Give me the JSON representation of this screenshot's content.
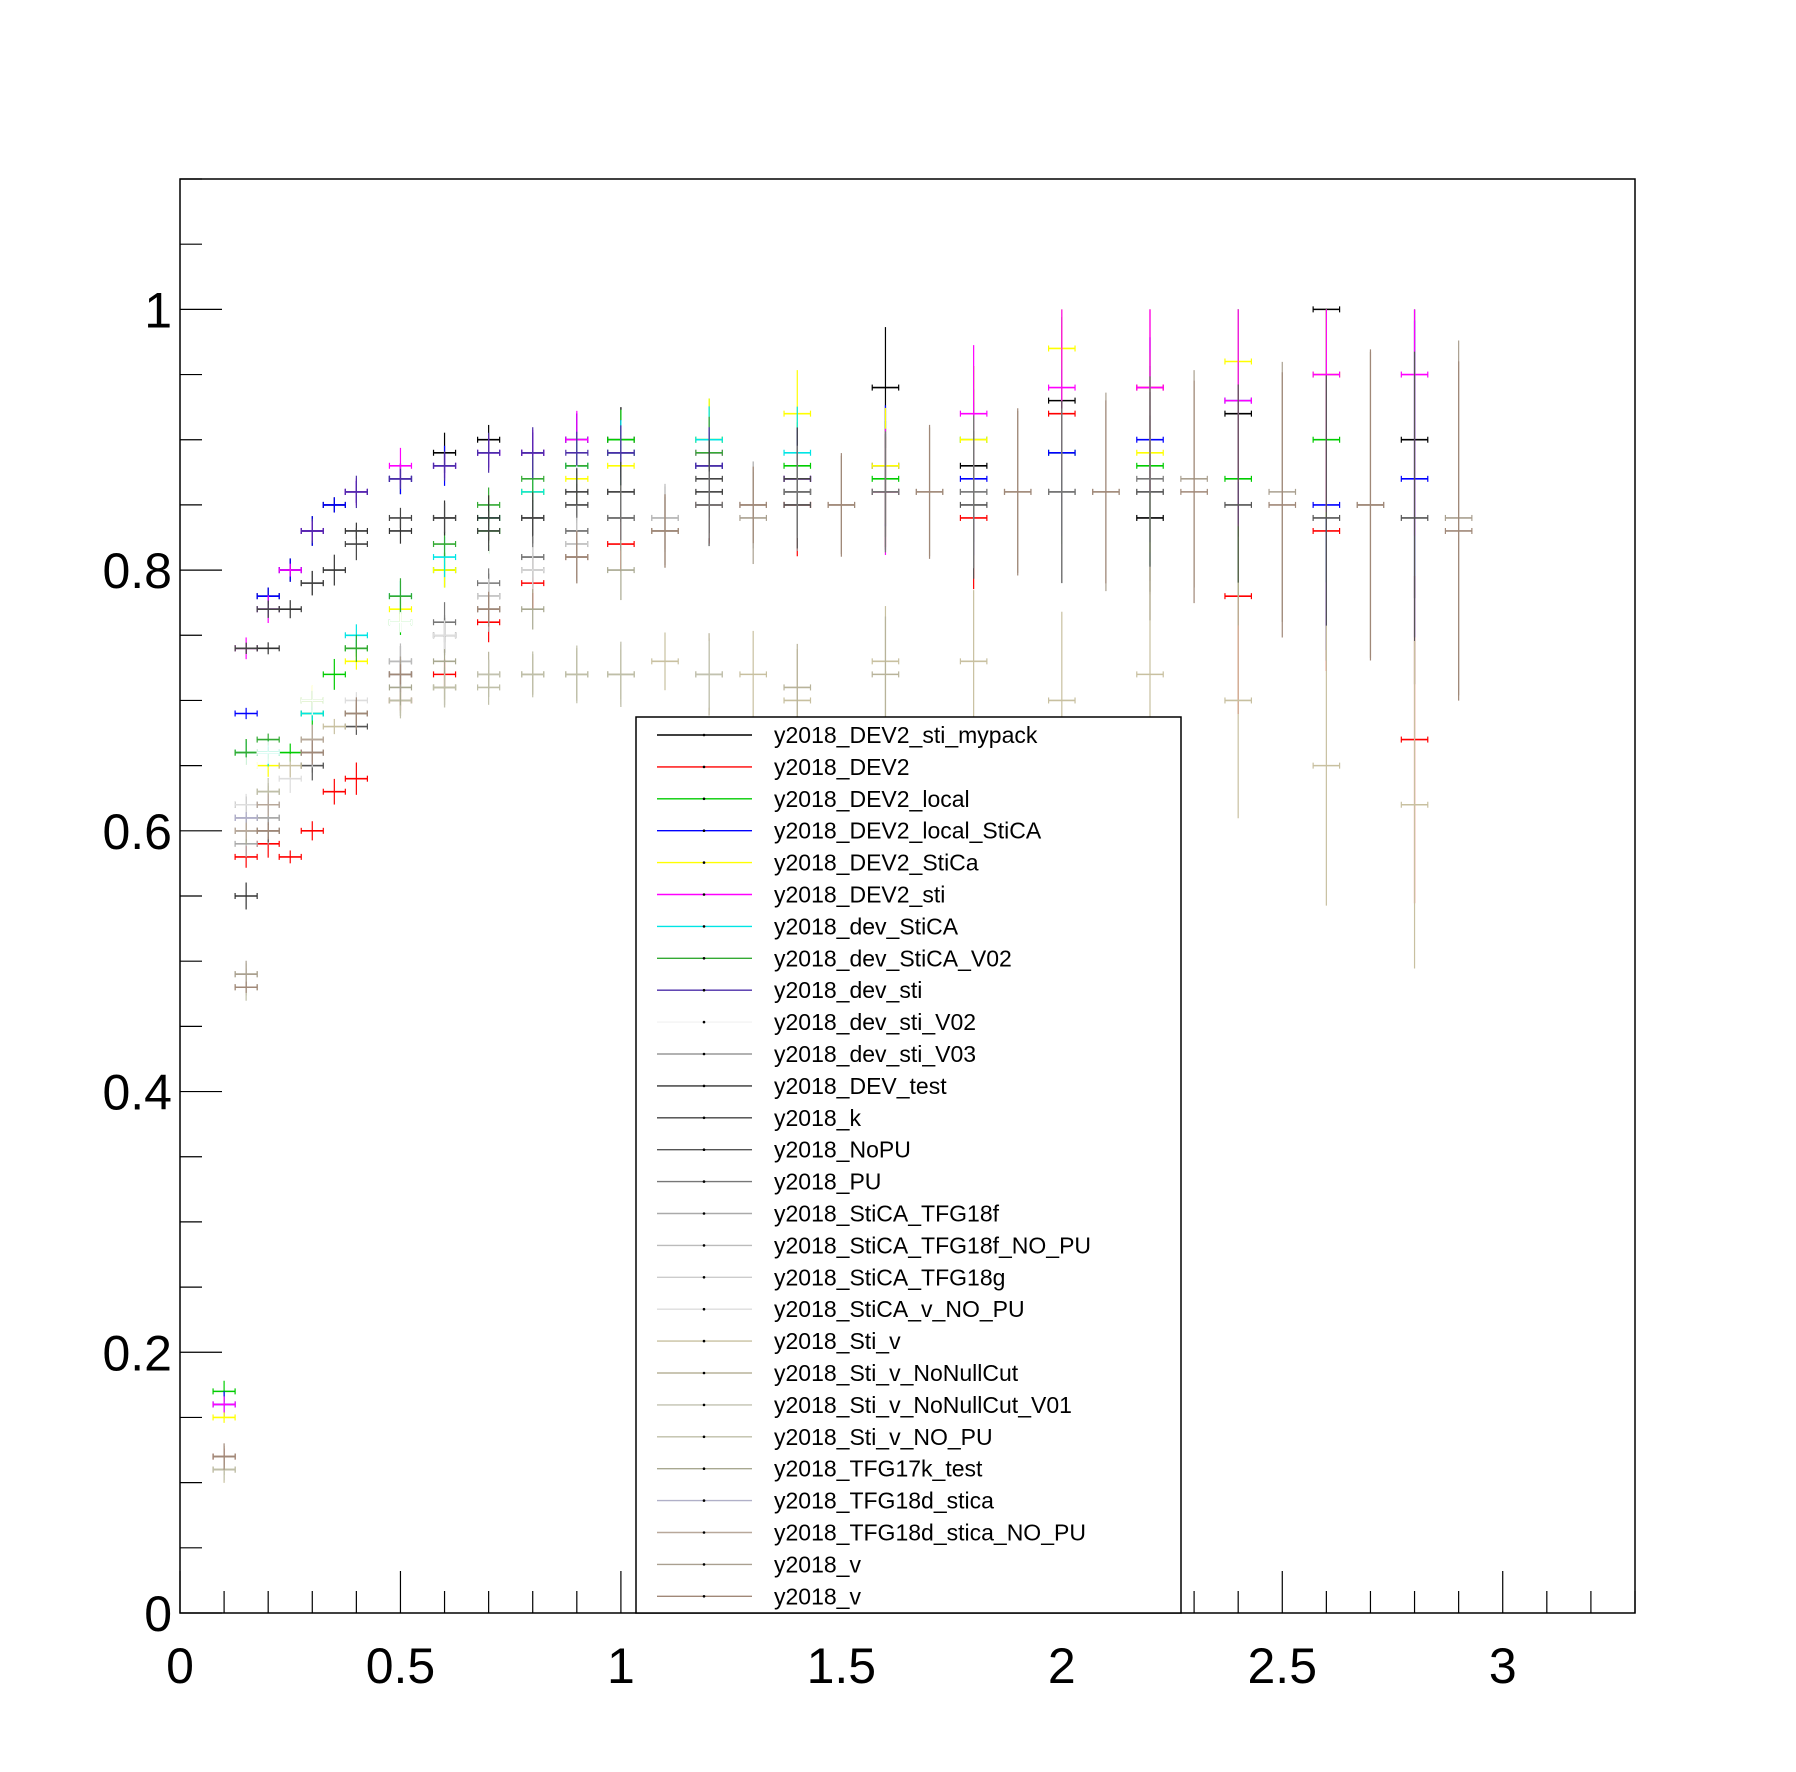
{
  "chart_data": {
    "type": "scatter",
    "title": "",
    "xlabel": "",
    "ylabel": "",
    "xlim": [
      0,
      3.3
    ],
    "ylim": [
      0,
      1.1
    ],
    "x_ticks": [
      0,
      0.5,
      1,
      1.5,
      2,
      2.5,
      3
    ],
    "x_tick_labels": [
      "0",
      "0.5",
      "1",
      "1.5",
      "2",
      "2.5",
      "3"
    ],
    "y_ticks": [
      0,
      0.2,
      0.4,
      0.6,
      0.8,
      1
    ],
    "y_tick_labels": [
      "0",
      "0.2",
      "0.4",
      "0.6",
      "0.8",
      "1"
    ],
    "grid": false,
    "legend_position": "bottom-center",
    "error_bars": true,
    "series": [
      {
        "name": "y2018_DEV2_sti_mypack",
        "color": "#000000",
        "x": [
          0.15,
          0.2,
          0.25,
          0.3,
          0.35,
          0.4,
          0.5,
          0.6,
          0.7,
          0.8,
          0.9,
          1.0,
          1.2,
          1.4,
          1.6,
          1.8,
          2.0,
          2.2,
          2.4,
          2.6,
          2.8
        ],
        "y": [
          0.74,
          0.78,
          0.8,
          0.83,
          0.85,
          0.86,
          0.87,
          0.89,
          0.9,
          0.89,
          0.9,
          0.9,
          0.88,
          0.86,
          0.94,
          0.88,
          0.93,
          0.84,
          0.92,
          1.0,
          0.9
        ]
      },
      {
        "name": "y2018_DEV2",
        "color": "#ff0000",
        "x": [
          0.1,
          0.15,
          0.2,
          0.25,
          0.3,
          0.35,
          0.4,
          0.5,
          0.6,
          0.7,
          0.8,
          0.9,
          1.0,
          1.2,
          1.4,
          1.6,
          1.8,
          2.0,
          2.2,
          2.4,
          2.6,
          2.8
        ],
        "y": [
          0.12,
          0.58,
          0.59,
          0.58,
          0.6,
          0.63,
          0.64,
          0.7,
          0.72,
          0.76,
          0.79,
          0.81,
          0.82,
          0.85,
          0.85,
          0.86,
          0.84,
          0.92,
          0.94,
          0.78,
          0.83,
          0.67
        ]
      },
      {
        "name": "y2018_DEV2_local",
        "color": "#00cc00",
        "x": [
          0.1,
          0.15,
          0.2,
          0.25,
          0.3,
          0.35,
          0.4,
          0.5,
          0.6,
          0.7,
          0.8,
          0.9,
          1.0,
          1.2,
          1.4,
          1.6,
          1.8,
          2.0,
          2.2,
          2.4,
          2.6
        ],
        "y": [
          0.17,
          0.66,
          0.66,
          0.66,
          0.69,
          0.72,
          0.74,
          0.76,
          0.8,
          0.83,
          0.86,
          0.88,
          0.9,
          0.9,
          0.88,
          0.87,
          0.9,
          0.89,
          0.88,
          0.87,
          0.9
        ]
      },
      {
        "name": "y2018_DEV2_local_StiCA",
        "color": "#0000ff",
        "x": [
          0.1,
          0.15,
          0.2,
          0.25,
          0.3,
          0.35,
          0.4,
          0.5,
          0.6,
          0.7,
          0.8,
          0.9,
          1.0,
          1.2,
          1.4,
          1.6,
          1.8,
          2.0,
          2.2,
          2.4,
          2.6,
          2.8
        ],
        "y": [
          0.16,
          0.69,
          0.78,
          0.8,
          0.83,
          0.85,
          0.86,
          0.87,
          0.88,
          0.89,
          0.89,
          0.9,
          0.89,
          0.88,
          0.87,
          0.88,
          0.87,
          0.89,
          0.9,
          0.93,
          0.85,
          0.87
        ]
      },
      {
        "name": "y2018_DEV2_StiCa",
        "color": "#ffff00",
        "x": [
          0.1,
          0.15,
          0.2,
          0.3,
          0.4,
          0.5,
          0.6,
          0.7,
          0.8,
          0.9,
          1.0,
          1.2,
          1.4,
          1.6,
          1.8,
          2.0,
          2.2,
          2.4,
          2.6
        ],
        "y": [
          0.15,
          0.66,
          0.65,
          0.7,
          0.73,
          0.77,
          0.8,
          0.84,
          0.86,
          0.87,
          0.88,
          0.9,
          0.92,
          0.88,
          0.9,
          0.97,
          0.89,
          0.96,
          0.95
        ]
      },
      {
        "name": "y2018_DEV2_sti",
        "color": "#ff00ff",
        "x": [
          0.1,
          0.15,
          0.2,
          0.25,
          0.3,
          0.4,
          0.5,
          0.6,
          0.7,
          0.8,
          0.9,
          1.0,
          1.2,
          1.4,
          1.6,
          1.8,
          2.0,
          2.2,
          2.4,
          2.6,
          2.8
        ],
        "y": [
          0.16,
          0.74,
          0.77,
          0.8,
          0.83,
          0.86,
          0.88,
          0.88,
          0.89,
          0.89,
          0.9,
          0.89,
          0.89,
          0.87,
          0.86,
          0.92,
          0.94,
          0.94,
          0.93,
          0.95,
          0.95
        ]
      },
      {
        "name": "y2018_dev_StiCA",
        "color": "#00e5e5",
        "x": [
          0.15,
          0.2,
          0.3,
          0.4,
          0.5,
          0.6,
          0.7,
          0.8,
          0.9,
          1.0,
          1.2,
          1.4
        ],
        "y": [
          0.66,
          0.66,
          0.69,
          0.75,
          0.78,
          0.81,
          0.84,
          0.86,
          0.88,
          0.89,
          0.9,
          0.89
        ]
      },
      {
        "name": "y2018_dev_StiCA_V02",
        "color": "#33aa33",
        "x": [
          0.15,
          0.2,
          0.3,
          0.4,
          0.5,
          0.6,
          0.7,
          0.8,
          0.9,
          1.0,
          1.2
        ],
        "y": [
          0.66,
          0.67,
          0.7,
          0.74,
          0.78,
          0.82,
          0.85,
          0.87,
          0.88,
          0.89,
          0.89
        ]
      },
      {
        "name": "y2018_dev_sti",
        "color": "#4b2ea8",
        "x": [
          0.15,
          0.2,
          0.3,
          0.4,
          0.5,
          0.6,
          0.7,
          0.8,
          0.9,
          1.0,
          1.2,
          1.4
        ],
        "y": [
          0.61,
          0.77,
          0.83,
          0.86,
          0.87,
          0.88,
          0.89,
          0.89,
          0.89,
          0.89,
          0.88,
          0.87
        ]
      },
      {
        "name": "y2018_dev_sti_V02",
        "color": "#ffffff",
        "x": [
          0.15,
          0.2,
          0.3,
          0.5,
          0.7,
          0.9
        ],
        "y": [
          0.65,
          0.66,
          0.7,
          0.76,
          0.82,
          0.86
        ]
      },
      {
        "name": "y2018_dev_sti_V03",
        "color": "#999999",
        "x": [
          0.15,
          0.2,
          0.3,
          0.4,
          0.5,
          0.6,
          0.7,
          0.8,
          0.9,
          1.0,
          1.2,
          1.4,
          1.6,
          1.8,
          2.0,
          2.2
        ],
        "y": [
          0.6,
          0.6,
          0.65,
          0.69,
          0.72,
          0.75,
          0.78,
          0.81,
          0.83,
          0.84,
          0.85,
          0.85,
          0.86,
          0.86,
          0.86,
          0.86
        ]
      },
      {
        "name": "y2018_DEV_test",
        "color": "#333333",
        "x": [
          0.15,
          0.2,
          0.25,
          0.3,
          0.35,
          0.4,
          0.5,
          0.6,
          0.7,
          0.8,
          0.9,
          1.0,
          1.2,
          1.4
        ],
        "y": [
          0.55,
          0.74,
          0.77,
          0.79,
          0.8,
          0.83,
          0.83,
          0.84,
          0.84,
          0.84,
          0.86,
          0.86,
          0.86,
          0.86
        ]
      },
      {
        "name": "y2018_k",
        "color": "#444444",
        "x": [
          0.15,
          0.2,
          0.3,
          0.4,
          0.5,
          0.6,
          0.7,
          0.8,
          0.9,
          1.0,
          1.2,
          1.4
        ],
        "y": [
          0.74,
          0.77,
          0.79,
          0.82,
          0.84,
          0.84,
          0.83,
          0.84,
          0.85,
          0.86,
          0.87,
          0.87
        ]
      },
      {
        "name": "y2018_NoPU",
        "color": "#555555",
        "x": [
          0.15,
          0.2,
          0.3,
          0.4,
          0.5,
          0.6,
          0.7,
          0.8,
          0.9,
          1.0,
          1.2,
          1.4,
          1.6,
          1.8,
          2.0,
          2.2,
          2.4,
          2.6,
          2.8
        ],
        "y": [
          0.62,
          0.6,
          0.65,
          0.68,
          0.72,
          0.75,
          0.78,
          0.8,
          0.82,
          0.84,
          0.85,
          0.85,
          0.86,
          0.85,
          0.86,
          0.86,
          0.85,
          0.84,
          0.84
        ]
      },
      {
        "name": "y2018_PU",
        "color": "#777777",
        "x": [
          0.15,
          0.2,
          0.3,
          0.4,
          0.5,
          0.6,
          0.7,
          0.8,
          0.9,
          1.0,
          1.2,
          1.4,
          1.6,
          1.8,
          2.0,
          2.2
        ],
        "y": [
          0.6,
          0.61,
          0.66,
          0.69,
          0.73,
          0.76,
          0.79,
          0.81,
          0.83,
          0.84,
          0.85,
          0.86,
          0.86,
          0.86,
          0.86,
          0.87
        ]
      },
      {
        "name": "y2018_StiCA_TFG18f",
        "color": "#aaaaaa",
        "x": [
          0.15,
          0.2,
          0.3,
          0.5,
          0.7,
          0.9,
          1.1,
          1.3
        ],
        "y": [
          0.59,
          0.61,
          0.66,
          0.72,
          0.77,
          0.82,
          0.84,
          0.85
        ]
      },
      {
        "name": "y2018_StiCA_TFG18f_NO_PU",
        "color": "#bbbbbb",
        "x": [
          0.15,
          0.2,
          0.3,
          0.5,
          0.7,
          0.9,
          1.1
        ],
        "y": [
          0.61,
          0.63,
          0.67,
          0.73,
          0.78,
          0.82,
          0.84
        ]
      },
      {
        "name": "y2018_StiCA_TFG18g",
        "color": "#cccccc",
        "x": [
          0.15,
          0.2,
          0.3,
          0.5,
          0.7,
          0.9
        ],
        "y": [
          0.6,
          0.62,
          0.66,
          0.72,
          0.78,
          0.82
        ]
      },
      {
        "name": "y2018_StiCA_v_NO_PU",
        "color": "#dddddd",
        "x": [
          0.15,
          0.25,
          0.4,
          0.6,
          0.8
        ],
        "y": [
          0.62,
          0.64,
          0.7,
          0.75,
          0.8
        ]
      },
      {
        "name": "y2018_Sti_v",
        "color": "#c8c0a0",
        "x": [
          0.1,
          0.15,
          0.2,
          0.25,
          0.3,
          0.35,
          0.4,
          0.5,
          0.6,
          0.7,
          0.8,
          0.9,
          1.0,
          1.1,
          1.2,
          1.3,
          1.4,
          1.6,
          1.8,
          2.0,
          2.2,
          2.4,
          2.6,
          2.8
        ],
        "y": [
          0.11,
          0.49,
          0.63,
          0.65,
          0.67,
          0.68,
          0.69,
          0.7,
          0.71,
          0.72,
          0.72,
          0.72,
          0.72,
          0.73,
          0.72,
          0.72,
          0.7,
          0.73,
          0.73,
          0.7,
          0.72,
          0.7,
          0.65,
          0.62
        ]
      },
      {
        "name": "y2018_Sti_v_NoNullCut",
        "color": "#b8b39a",
        "x": [
          0.1,
          0.15,
          0.2,
          0.3,
          0.4,
          0.5,
          0.6,
          0.7,
          0.8,
          0.9,
          1.0,
          1.2,
          1.4,
          1.6
        ],
        "y": [
          0.11,
          0.48,
          0.62,
          0.67,
          0.69,
          0.7,
          0.71,
          0.72,
          0.72,
          0.72,
          0.72,
          0.72,
          0.71,
          0.72
        ]
      },
      {
        "name": "y2018_Sti_v_NoNullCut_V01",
        "color": "#c2c2b0",
        "x": [
          0.1,
          0.15,
          0.2,
          0.3,
          0.4,
          0.5,
          0.6,
          0.7,
          0.8,
          0.9,
          1.0,
          1.2
        ],
        "y": [
          0.12,
          0.49,
          0.63,
          0.67,
          0.69,
          0.7,
          0.71,
          0.72,
          0.72,
          0.72,
          0.72,
          0.72
        ]
      },
      {
        "name": "y2018_Sti_v_NO_PU",
        "color": "#bfbfa8",
        "x": [
          0.1,
          0.15,
          0.2,
          0.3,
          0.4,
          0.5,
          0.6,
          0.7,
          0.8,
          0.9,
          1.0
        ],
        "y": [
          0.11,
          0.48,
          0.63,
          0.67,
          0.69,
          0.7,
          0.71,
          0.71,
          0.72,
          0.72,
          0.72
        ]
      },
      {
        "name": "y2018_TFG17k_test",
        "color": "#a8a890",
        "x": [
          0.15,
          0.2,
          0.3,
          0.4,
          0.5,
          0.6,
          0.8,
          1.0
        ],
        "y": [
          0.6,
          0.62,
          0.66,
          0.69,
          0.71,
          0.73,
          0.77,
          0.8
        ]
      },
      {
        "name": "y2018_TFG18d_stica",
        "color": "#b0b0c8",
        "x": [
          0.15,
          0.2,
          0.3,
          0.5,
          0.7,
          0.9
        ],
        "y": [
          0.61,
          0.62,
          0.66,
          0.72,
          0.77,
          0.81
        ]
      },
      {
        "name": "y2018_TFG18d_stica_NO_PU",
        "color": "#b8a89a",
        "x": [
          0.15,
          0.2,
          0.3,
          0.5,
          0.7,
          0.9,
          1.1,
          1.3
        ],
        "y": [
          0.6,
          0.62,
          0.67,
          0.72,
          0.77,
          0.81,
          0.83,
          0.85
        ]
      },
      {
        "name": "y2018_v",
        "color": "#aaa090",
        "x": [
          0.1,
          0.15,
          0.2,
          0.3,
          0.4,
          0.5,
          0.7,
          0.9,
          1.1,
          1.3,
          1.5,
          1.7,
          1.9,
          2.1,
          2.3,
          2.5,
          2.7,
          2.9
        ],
        "y": [
          0.12,
          0.49,
          0.6,
          0.66,
          0.69,
          0.72,
          0.77,
          0.81,
          0.83,
          0.84,
          0.85,
          0.86,
          0.86,
          0.86,
          0.87,
          0.86,
          0.85,
          0.84
        ]
      },
      {
        "name": "y2018_v",
        "color": "#a08878",
        "x": [
          0.1,
          0.15,
          0.2,
          0.3,
          0.4,
          0.5,
          0.7,
          0.9,
          1.1,
          1.3,
          1.5,
          1.7,
          1.9,
          2.1,
          2.3,
          2.5,
          2.7,
          2.9
        ],
        "y": [
          0.12,
          0.48,
          0.6,
          0.66,
          0.69,
          0.72,
          0.77,
          0.81,
          0.83,
          0.85,
          0.85,
          0.86,
          0.86,
          0.86,
          0.86,
          0.85,
          0.85,
          0.83
        ]
      }
    ]
  }
}
